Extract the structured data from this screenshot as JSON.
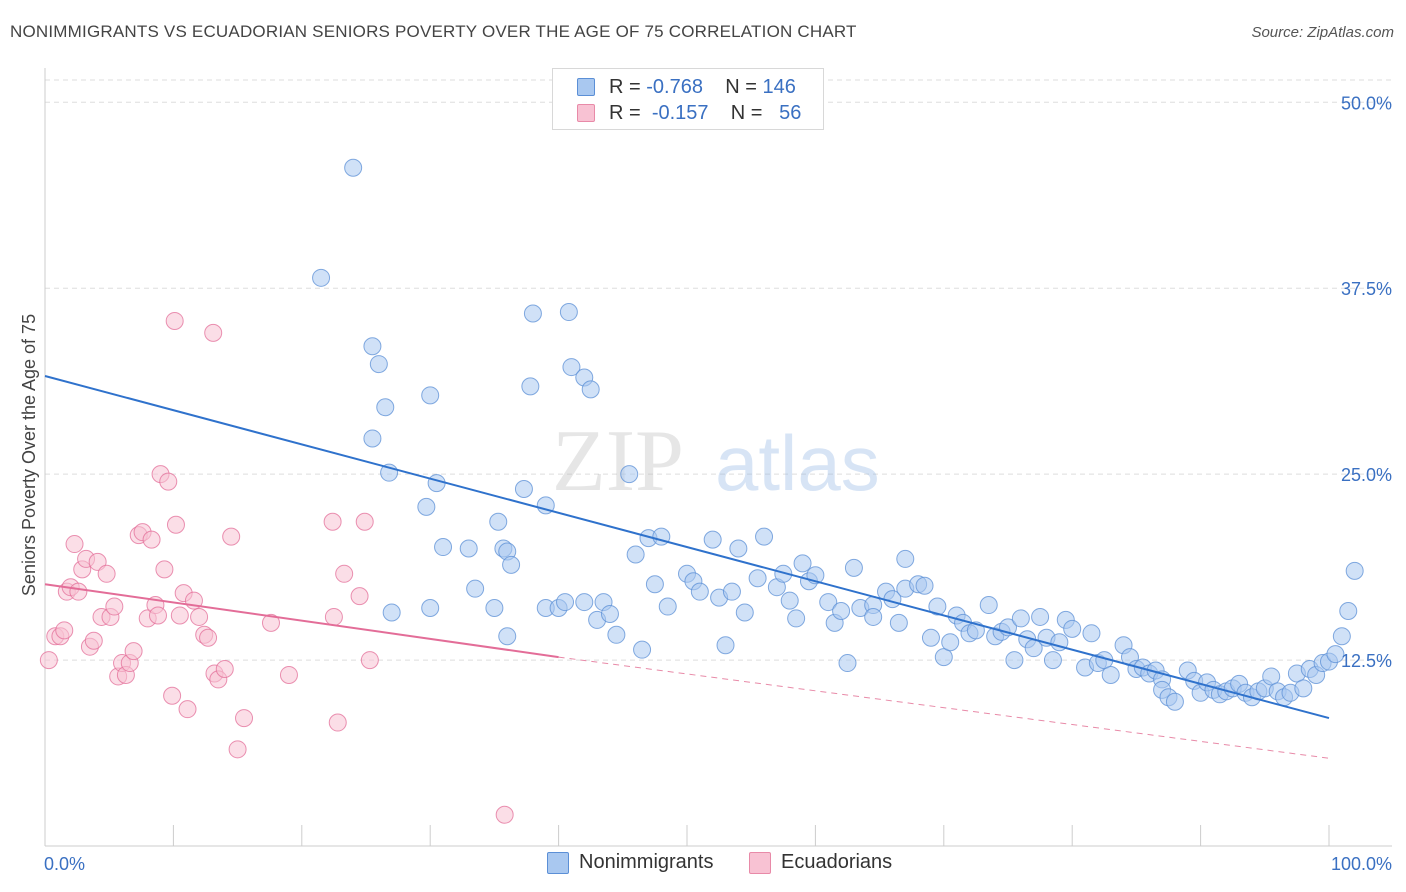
{
  "header": {
    "title": "NONIMMIGRANTS VS ECUADORIAN SENIORS POVERTY OVER THE AGE OF 75 CORRELATION CHART",
    "source": "Source: ZipAtlas.com"
  },
  "watermark": {
    "zip": "ZIP",
    "atlas": "atlas"
  },
  "legend": {
    "r_label": "R =",
    "n_label": "N =",
    "rows": [
      {
        "r": "-0.768",
        "n": "146",
        "color": "#a9c8f0",
        "edge": "#5b8fd6"
      },
      {
        "r": "-0.157",
        "n": "56",
        "color": "#f8c2d3",
        "edge": "#e88aa8"
      }
    ]
  },
  "bottom_legend": {
    "nonimmigrants": "Nonimmigrants",
    "ecuadorians": "Ecuadorians"
  },
  "axes": {
    "ylabel": "Seniors Poverty Over the Age of 75",
    "x_min_label": "0.0%",
    "x_max_label": "100.0%",
    "y_ticks": [
      "12.5%",
      "25.0%",
      "37.5%",
      "50.0%"
    ]
  },
  "chart_data": {
    "type": "scatter",
    "xlim": [
      0,
      100
    ],
    "ylim": [
      0,
      51.5
    ],
    "grid": true,
    "y_tick_values": [
      12.5,
      25.0,
      37.5,
      50.0
    ],
    "series": [
      {
        "name": "Nonimmigrants",
        "color": "#5b8fd6",
        "fill": "#a9c8f0",
        "regression": {
          "x": [
            0,
            100
          ],
          "y": [
            31.6,
            8.6
          ],
          "style": "solid"
        },
        "points": [
          [
            24.0,
            45.6
          ],
          [
            21.5,
            38.2
          ],
          [
            25.5,
            33.6
          ],
          [
            26.0,
            32.4
          ],
          [
            30.0,
            30.3
          ],
          [
            26.5,
            29.5
          ],
          [
            37.8,
            30.9
          ],
          [
            38.0,
            35.8
          ],
          [
            40.8,
            35.9
          ],
          [
            41.0,
            32.2
          ],
          [
            42.0,
            31.5
          ],
          [
            42.5,
            30.7
          ],
          [
            25.5,
            27.4
          ],
          [
            26.8,
            25.1
          ],
          [
            30.5,
            24.4
          ],
          [
            29.7,
            22.8
          ],
          [
            31.0,
            20.1
          ],
          [
            33.0,
            20.0
          ],
          [
            35.3,
            21.8
          ],
          [
            35.7,
            20.0
          ],
          [
            37.3,
            24.0
          ],
          [
            39.0,
            22.9
          ],
          [
            45.5,
            25.0
          ],
          [
            36.0,
            19.8
          ],
          [
            36.3,
            18.9
          ],
          [
            33.5,
            17.3
          ],
          [
            35.0,
            16.0
          ],
          [
            36.0,
            14.1
          ],
          [
            30.0,
            16.0
          ],
          [
            27.0,
            15.7
          ],
          [
            39.0,
            16.0
          ],
          [
            40.0,
            16.0
          ],
          [
            40.5,
            16.4
          ],
          [
            42.0,
            16.4
          ],
          [
            43.5,
            16.4
          ],
          [
            43.0,
            15.2
          ],
          [
            44.0,
            15.6
          ],
          [
            44.5,
            14.2
          ],
          [
            46.5,
            13.2
          ],
          [
            46.0,
            19.6
          ],
          [
            47.0,
            20.7
          ],
          [
            48.0,
            20.8
          ],
          [
            47.5,
            17.6
          ],
          [
            48.5,
            16.1
          ],
          [
            50.0,
            18.3
          ],
          [
            50.5,
            17.8
          ],
          [
            51.0,
            17.1
          ],
          [
            52.0,
            20.6
          ],
          [
            52.5,
            16.7
          ],
          [
            53.5,
            17.1
          ],
          [
            53.0,
            13.5
          ],
          [
            54.0,
            20.0
          ],
          [
            54.5,
            15.7
          ],
          [
            55.5,
            18.0
          ],
          [
            56.0,
            20.8
          ],
          [
            57.0,
            17.4
          ],
          [
            57.5,
            18.3
          ],
          [
            58.0,
            16.5
          ],
          [
            58.5,
            15.3
          ],
          [
            59.0,
            19.0
          ],
          [
            59.5,
            17.8
          ],
          [
            60.0,
            18.2
          ],
          [
            61.0,
            16.4
          ],
          [
            61.5,
            15.0
          ],
          [
            62.0,
            15.8
          ],
          [
            62.5,
            12.3
          ],
          [
            63.0,
            18.7
          ],
          [
            63.5,
            16.0
          ],
          [
            64.5,
            16.2
          ],
          [
            64.5,
            15.4
          ],
          [
            65.5,
            17.1
          ],
          [
            66.0,
            16.6
          ],
          [
            66.5,
            15.0
          ],
          [
            67.0,
            19.3
          ],
          [
            67.0,
            17.3
          ],
          [
            68.0,
            17.6
          ],
          [
            68.5,
            17.5
          ],
          [
            69.0,
            14.0
          ],
          [
            69.5,
            16.1
          ],
          [
            70.0,
            12.7
          ],
          [
            70.5,
            13.7
          ],
          [
            71.0,
            15.5
          ],
          [
            71.5,
            15.0
          ],
          [
            72.0,
            14.3
          ],
          [
            72.5,
            14.5
          ],
          [
            73.5,
            16.2
          ],
          [
            74.0,
            14.1
          ],
          [
            74.5,
            14.4
          ],
          [
            75.0,
            14.7
          ],
          [
            75.5,
            12.5
          ],
          [
            76.0,
            15.3
          ],
          [
            76.5,
            13.9
          ],
          [
            77.0,
            13.3
          ],
          [
            77.5,
            15.4
          ],
          [
            78.0,
            14.0
          ],
          [
            78.5,
            12.5
          ],
          [
            79.0,
            13.7
          ],
          [
            79.5,
            15.2
          ],
          [
            80.0,
            14.6
          ],
          [
            81.0,
            12.0
          ],
          [
            81.5,
            14.3
          ],
          [
            82.0,
            12.3
          ],
          [
            82.5,
            12.5
          ],
          [
            83.0,
            11.5
          ],
          [
            84.0,
            13.5
          ],
          [
            84.5,
            12.7
          ],
          [
            85.0,
            11.9
          ],
          [
            85.5,
            12.0
          ],
          [
            86.0,
            11.6
          ],
          [
            86.5,
            11.8
          ],
          [
            87.0,
            11.2
          ],
          [
            87.0,
            10.5
          ],
          [
            87.5,
            10.0
          ],
          [
            88.0,
            9.7
          ],
          [
            89.0,
            11.8
          ],
          [
            89.5,
            11.1
          ],
          [
            90.0,
            10.3
          ],
          [
            90.5,
            11.0
          ],
          [
            91.0,
            10.5
          ],
          [
            91.5,
            10.2
          ],
          [
            92.0,
            10.4
          ],
          [
            92.5,
            10.6
          ],
          [
            93.0,
            10.9
          ],
          [
            93.5,
            10.3
          ],
          [
            94.0,
            10.0
          ],
          [
            94.5,
            10.4
          ],
          [
            95.0,
            10.6
          ],
          [
            95.5,
            11.4
          ],
          [
            96.0,
            10.4
          ],
          [
            96.5,
            10.0
          ],
          [
            97.0,
            10.3
          ],
          [
            97.5,
            11.6
          ],
          [
            98.0,
            10.6
          ],
          [
            98.5,
            11.9
          ],
          [
            99.0,
            11.5
          ],
          [
            99.5,
            12.3
          ],
          [
            100.0,
            12.4
          ],
          [
            100.5,
            12.9
          ],
          [
            101.0,
            14.1
          ],
          [
            101.5,
            15.8
          ],
          [
            102.0,
            18.5
          ]
        ]
      },
      {
        "name": "Ecuadorians",
        "color": "#e36d98",
        "fill": "#f8c2d3",
        "regression": {
          "x": [
            0,
            40
          ],
          "y": [
            17.6,
            12.7
          ],
          "style": "solid"
        },
        "regression_extension": {
          "x": [
            40,
            100
          ],
          "y": [
            12.7,
            5.9
          ],
          "style": "dashed"
        },
        "points": [
          [
            0.3,
            12.5
          ],
          [
            0.8,
            14.1
          ],
          [
            1.2,
            14.1
          ],
          [
            1.5,
            14.5
          ],
          [
            1.7,
            17.1
          ],
          [
            2.0,
            17.4
          ],
          [
            2.3,
            20.3
          ],
          [
            2.6,
            17.1
          ],
          [
            2.9,
            18.6
          ],
          [
            3.2,
            19.3
          ],
          [
            3.5,
            13.4
          ],
          [
            3.8,
            13.8
          ],
          [
            4.1,
            19.1
          ],
          [
            4.4,
            15.4
          ],
          [
            4.8,
            18.3
          ],
          [
            5.1,
            15.4
          ],
          [
            5.4,
            16.1
          ],
          [
            5.7,
            11.4
          ],
          [
            6.0,
            12.3
          ],
          [
            6.3,
            11.5
          ],
          [
            6.6,
            12.3
          ],
          [
            6.9,
            13.1
          ],
          [
            7.3,
            20.9
          ],
          [
            7.6,
            21.1
          ],
          [
            8.0,
            15.3
          ],
          [
            8.3,
            20.6
          ],
          [
            8.6,
            16.2
          ],
          [
            9.0,
            25.0
          ],
          [
            8.8,
            15.5
          ],
          [
            9.3,
            18.6
          ],
          [
            9.6,
            24.5
          ],
          [
            9.9,
            10.1
          ],
          [
            10.2,
            21.6
          ],
          [
            10.5,
            15.5
          ],
          [
            10.8,
            17.0
          ],
          [
            11.1,
            9.2
          ],
          [
            11.6,
            16.5
          ],
          [
            12.0,
            15.4
          ],
          [
            12.4,
            14.2
          ],
          [
            12.7,
            14.0
          ],
          [
            13.2,
            11.6
          ],
          [
            13.5,
            11.2
          ],
          [
            14.0,
            11.9
          ],
          [
            14.5,
            20.8
          ],
          [
            15.0,
            6.5
          ],
          [
            15.5,
            8.6
          ],
          [
            10.1,
            35.3
          ],
          [
            13.1,
            34.5
          ],
          [
            17.6,
            15.0
          ],
          [
            19.0,
            11.5
          ],
          [
            22.4,
            21.8
          ],
          [
            22.5,
            15.4
          ],
          [
            23.3,
            18.3
          ],
          [
            24.5,
            16.8
          ],
          [
            24.9,
            21.8
          ],
          [
            25.3,
            12.5
          ],
          [
            22.8,
            8.3
          ],
          [
            35.8,
            2.1
          ]
        ]
      }
    ]
  }
}
